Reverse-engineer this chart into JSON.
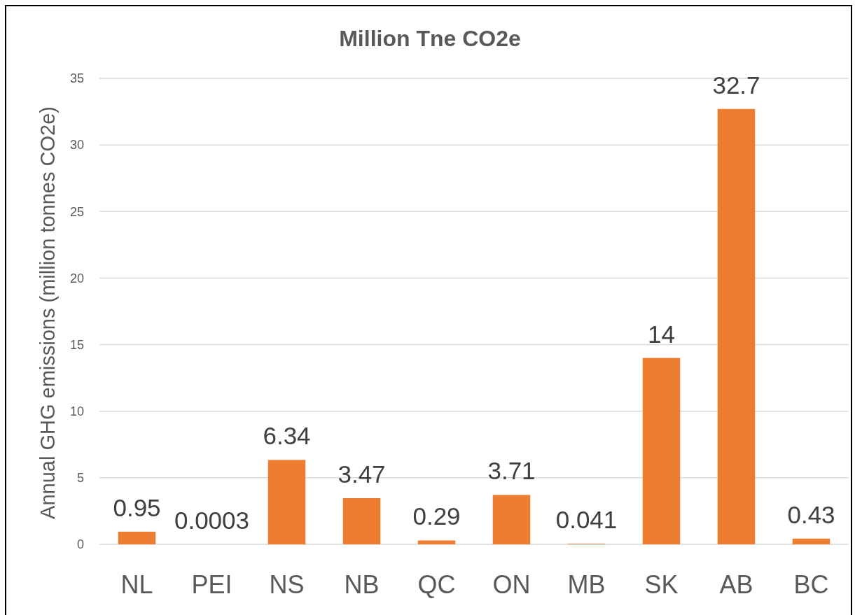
{
  "chart_data": {
    "type": "bar",
    "title": "Million Tne CO2e",
    "ylabel": "Annual GHG emissions (million tonnes CO2e)",
    "categories": [
      "NL",
      "PEI",
      "NS",
      "NB",
      "QC",
      "ON",
      "MB",
      "SK",
      "AB",
      "BC"
    ],
    "values": [
      0.95,
      0.0003,
      6.34,
      3.47,
      0.29,
      3.71,
      0.041,
      14,
      32.7,
      0.43
    ],
    "color": "#ed7d31",
    "ylim": [
      0,
      35
    ],
    "yticks": [
      0,
      5,
      10,
      15,
      20,
      25,
      30,
      35
    ],
    "grid": "y",
    "data_labels": true
  }
}
